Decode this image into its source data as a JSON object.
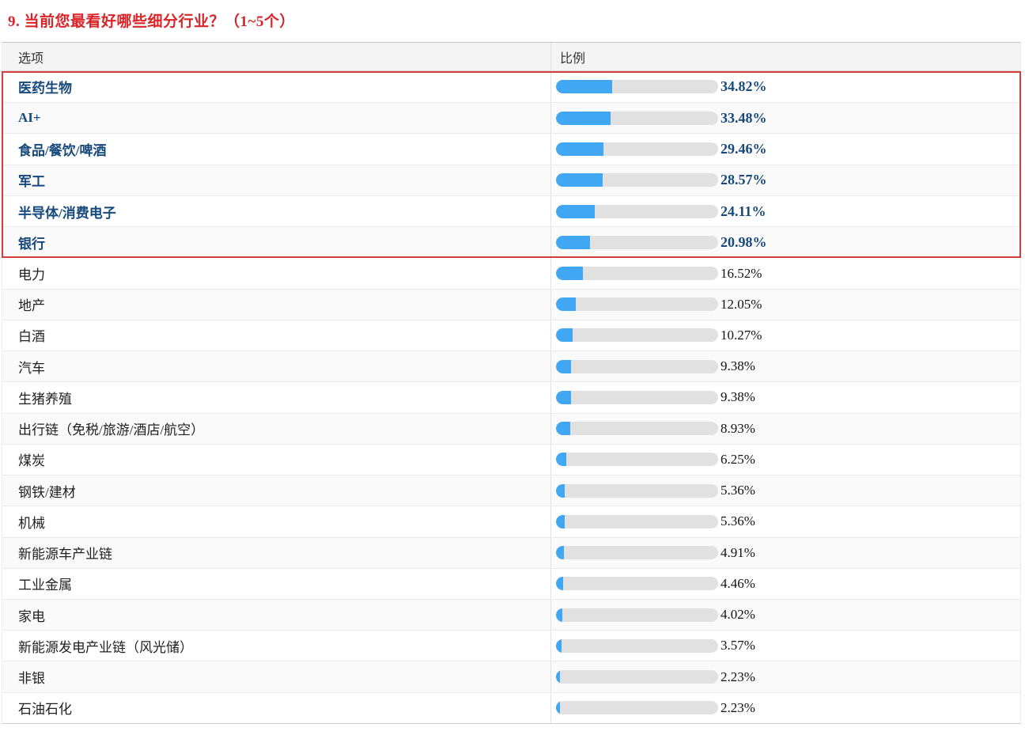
{
  "title": "9. 当前您最看好哪些细分行业？（1~5个）",
  "table": {
    "headers": {
      "option": "选项",
      "ratio": "比例"
    },
    "rows": [
      {
        "label": "医药生物",
        "value": 34.82,
        "display": "34.82%",
        "highlighted": true
      },
      {
        "label": "AI+",
        "value": 33.48,
        "display": "33.48%",
        "highlighted": true
      },
      {
        "label": "食品/餐饮/啤酒",
        "value": 29.46,
        "display": "29.46%",
        "highlighted": true
      },
      {
        "label": "军工",
        "value": 28.57,
        "display": "28.57%",
        "highlighted": true
      },
      {
        "label": "半导体/消费电子",
        "value": 24.11,
        "display": "24.11%",
        "highlighted": true
      },
      {
        "label": "银行",
        "value": 20.98,
        "display": "20.98%",
        "highlighted": true
      },
      {
        "label": "电力",
        "value": 16.52,
        "display": "16.52%",
        "highlighted": false
      },
      {
        "label": "地产",
        "value": 12.05,
        "display": "12.05%",
        "highlighted": false
      },
      {
        "label": "白酒",
        "value": 10.27,
        "display": "10.27%",
        "highlighted": false
      },
      {
        "label": "汽车",
        "value": 9.38,
        "display": "9.38%",
        "highlighted": false
      },
      {
        "label": "生猪养殖",
        "value": 9.38,
        "display": "9.38%",
        "highlighted": false
      },
      {
        "label": "出行链（免税/旅游/酒店/航空）",
        "value": 8.93,
        "display": "8.93%",
        "highlighted": false
      },
      {
        "label": "煤炭",
        "value": 6.25,
        "display": "6.25%",
        "highlighted": false
      },
      {
        "label": "钢铁/建材",
        "value": 5.36,
        "display": "5.36%",
        "highlighted": false
      },
      {
        "label": "机械",
        "value": 5.36,
        "display": "5.36%",
        "highlighted": false
      },
      {
        "label": "新能源车产业链",
        "value": 4.91,
        "display": "4.91%",
        "highlighted": false
      },
      {
        "label": "工业金属",
        "value": 4.46,
        "display": "4.46%",
        "highlighted": false
      },
      {
        "label": "家电",
        "value": 4.02,
        "display": "4.02%",
        "highlighted": false
      },
      {
        "label": "新能源发电产业链（风光储）",
        "value": 3.57,
        "display": "3.57%",
        "highlighted": false
      },
      {
        "label": "非银",
        "value": 2.23,
        "display": "2.23%",
        "highlighted": false
      },
      {
        "label": "石油石化",
        "value": 2.23,
        "display": "2.23%",
        "highlighted": false
      }
    ]
  },
  "colors": {
    "bar_fill": "#41a7f3",
    "bar_track": "#e1e1e1",
    "highlight_text": "#17497d",
    "title_red": "#d9252a",
    "highlight_box_red": "#d63c3c",
    "header_bg": "#f4f4f5",
    "row_alt_bg": "#fafafa"
  },
  "chart_data": {
    "type": "bar",
    "orientation": "horizontal",
    "title": "9. 当前您最看好哪些细分行业？（1~5个）",
    "categories": [
      "医药生物",
      "AI+",
      "食品/餐饮/啤酒",
      "军工",
      "半导体/消费电子",
      "银行",
      "电力",
      "地产",
      "白酒",
      "汽车",
      "生猪养殖",
      "出行链（免税/旅游/酒店/航空）",
      "煤炭",
      "钢铁/建材",
      "机械",
      "新能源车产业链",
      "工业金属",
      "家电",
      "新能源发电产业链（风光储）",
      "非银",
      "石油石化"
    ],
    "values": [
      34.82,
      33.48,
      29.46,
      28.57,
      24.11,
      20.98,
      16.52,
      12.05,
      10.27,
      9.38,
      9.38,
      8.93,
      6.25,
      5.36,
      5.36,
      4.91,
      4.46,
      4.02,
      3.57,
      2.23,
      2.23
    ],
    "value_suffix": "%",
    "xlim": [
      0,
      100
    ],
    "xlabel": "比例",
    "ylabel": "选项",
    "legend": false,
    "grid": false,
    "highlighted_categories": [
      "医药生物",
      "AI+",
      "食品/餐饮/啤酒",
      "军工",
      "半导体/消费电子",
      "银行"
    ]
  }
}
